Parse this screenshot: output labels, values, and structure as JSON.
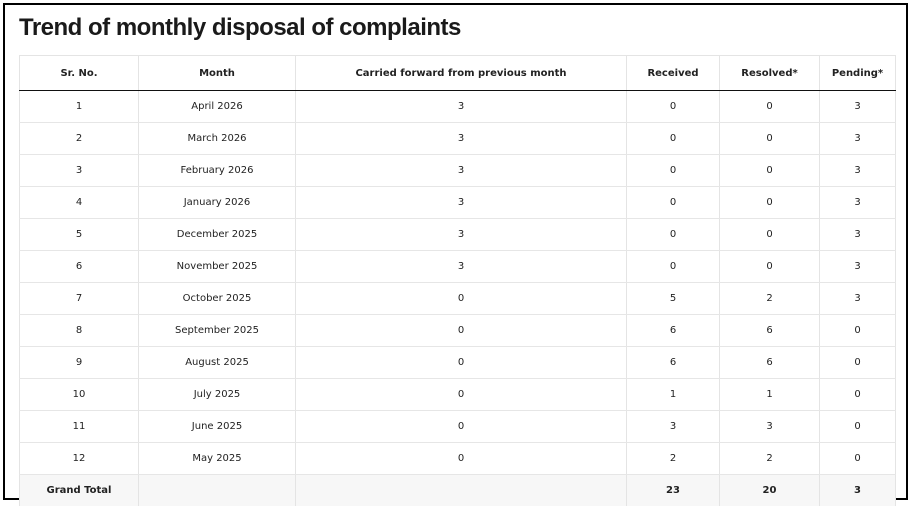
{
  "title": "Trend of monthly disposal of complaints",
  "table": {
    "headers": {
      "sr": "Sr. No.",
      "month": "Month",
      "carried": "Carried forward from previous month",
      "received": "Received",
      "resolved": "Resolved*",
      "pending": "Pending*"
    },
    "rows": [
      {
        "sr": "1",
        "month": "April 2026",
        "carried": "3",
        "received": "0",
        "resolved": "0",
        "pending": "3"
      },
      {
        "sr": "2",
        "month": "March 2026",
        "carried": "3",
        "received": "0",
        "resolved": "0",
        "pending": "3"
      },
      {
        "sr": "3",
        "month": "February 2026",
        "carried": "3",
        "received": "0",
        "resolved": "0",
        "pending": "3"
      },
      {
        "sr": "4",
        "month": "January 2026",
        "carried": "3",
        "received": "0",
        "resolved": "0",
        "pending": "3"
      },
      {
        "sr": "5",
        "month": "December 2025",
        "carried": "3",
        "received": "0",
        "resolved": "0",
        "pending": "3"
      },
      {
        "sr": "6",
        "month": "November 2025",
        "carried": "3",
        "received": "0",
        "resolved": "0",
        "pending": "3"
      },
      {
        "sr": "7",
        "month": "October 2025",
        "carried": "0",
        "received": "5",
        "resolved": "2",
        "pending": "3"
      },
      {
        "sr": "8",
        "month": "September 2025",
        "carried": "0",
        "received": "6",
        "resolved": "6",
        "pending": "0"
      },
      {
        "sr": "9",
        "month": "August 2025",
        "carried": "0",
        "received": "6",
        "resolved": "6",
        "pending": "0"
      },
      {
        "sr": "10",
        "month": "July 2025",
        "carried": "0",
        "received": "1",
        "resolved": "1",
        "pending": "0"
      },
      {
        "sr": "11",
        "month": "June 2025",
        "carried": "0",
        "received": "3",
        "resolved": "3",
        "pending": "0"
      },
      {
        "sr": "12",
        "month": "May 2025",
        "carried": "0",
        "received": "2",
        "resolved": "2",
        "pending": "0"
      }
    ],
    "total": {
      "label": "Grand Total",
      "month": "",
      "carried": "",
      "received": "23",
      "resolved": "20",
      "pending": "3"
    }
  }
}
